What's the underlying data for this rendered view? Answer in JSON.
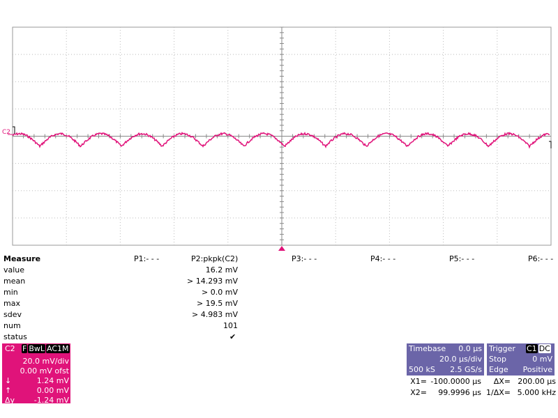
{
  "channel_marker": "C2",
  "measure": {
    "header": [
      "Measure",
      "P1:- - -",
      "P2:pkpk(C2)",
      "P3:- - -",
      "P4:- - -",
      "P5:- - -",
      "P6:- - -"
    ],
    "rows": [
      [
        "value",
        "16.2 mV"
      ],
      [
        "mean",
        "> 14.293 mV"
      ],
      [
        "min",
        "> 0.0 mV"
      ],
      [
        "max",
        "> 19.5 mV"
      ],
      [
        "sdev",
        "> 4.983 mV"
      ],
      [
        "num",
        "101"
      ],
      [
        "status",
        ""
      ]
    ]
  },
  "channel": {
    "name": "C2",
    "tags": [
      "F",
      "BwL",
      "AC1M"
    ],
    "lines": [
      [
        "",
        "20.0 mV/div"
      ],
      [
        "",
        "0.00 mV ofst"
      ],
      [
        "↓",
        "1.24 mV"
      ],
      [
        "↑",
        "0.00 mV"
      ],
      [
        "Δy",
        "-1.24 mV"
      ]
    ]
  },
  "timebase": {
    "title": "Timebase",
    "delay": "0.0 µs",
    "scale": "20.0 µs/div",
    "samples": "500 kS",
    "rate": "2.5 GS/s"
  },
  "trigger": {
    "title": "Trigger",
    "source": "C1",
    "coupling": "DC",
    "mode": "Stop",
    "level": "0 mV",
    "type": "Edge",
    "slope": "Positive"
  },
  "cursors": [
    [
      "X1=",
      "-100.0000 µs",
      "ΔX=",
      "200.00 µs"
    ],
    [
      "X2=",
      "99.9996 µs",
      "1/ΔX=",
      "5.000 kHz"
    ]
  ]
}
